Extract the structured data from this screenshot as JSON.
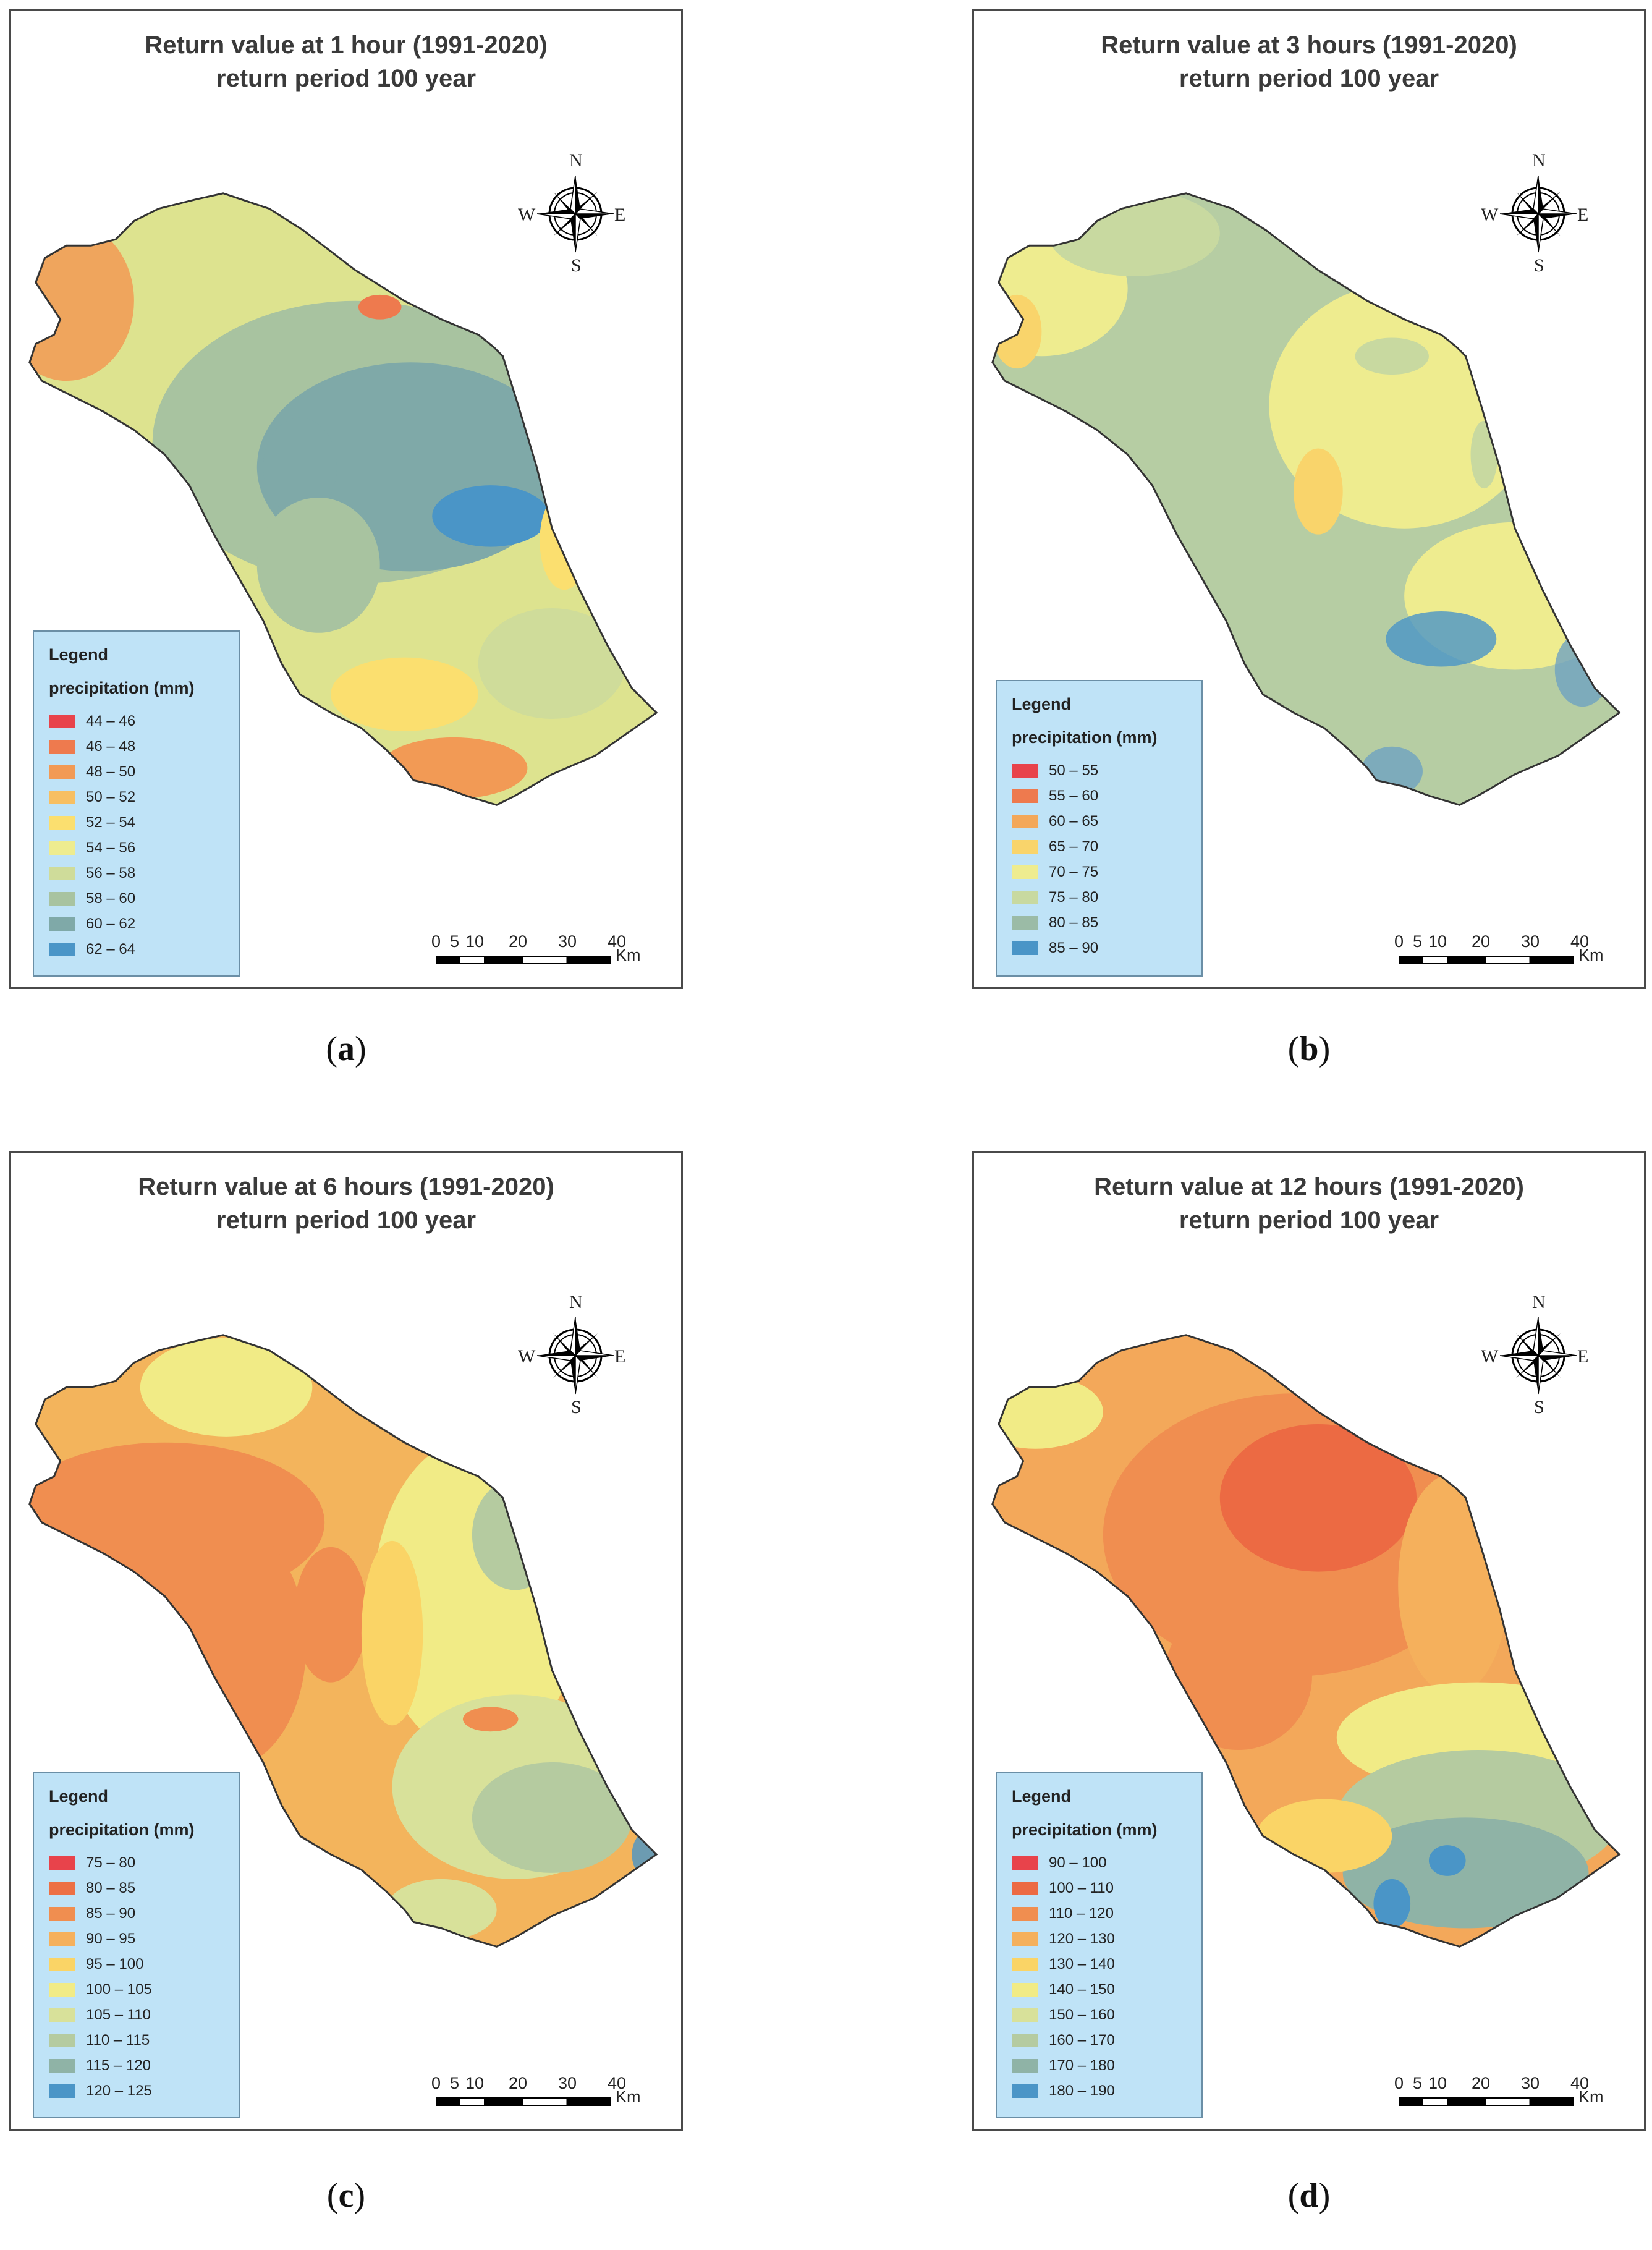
{
  "compass_labels": {
    "n": "N",
    "e": "E",
    "s": "S",
    "w": "W"
  },
  "scale_bar": {
    "ticks": [
      "0",
      "5",
      "10",
      "20",
      "30",
      "40"
    ],
    "unit": "Km"
  },
  "legend_title": "Legend",
  "legend_unit": "precipitation (mm)",
  "panels": [
    {
      "caption": "a",
      "title_line1": "Return value at 1 hour (1991-2020)",
      "title_line2": "return period 100 year",
      "classes": [
        {
          "label": "44 – 46",
          "color": "#e8434b"
        },
        {
          "label": "46 – 48",
          "color": "#ee7a4e"
        },
        {
          "label": "48 – 50",
          "color": "#f29a55"
        },
        {
          "label": "50 – 52",
          "color": "#f7bf62"
        },
        {
          "label": "52 – 54",
          "color": "#fbdf6f"
        },
        {
          "label": "54 – 56",
          "color": "#eeec8f"
        },
        {
          "label": "56 – 58",
          "color": "#cfdc9a"
        },
        {
          "label": "58 – 60",
          "color": "#a8c3a0"
        },
        {
          "label": "60 – 62",
          "color": "#7fa9a8"
        },
        {
          "label": "62 – 64",
          "color": "#4a95c7"
        }
      ],
      "base_color": "#dde38f"
    },
    {
      "caption": "b",
      "title_line1": "Return value at 3 hours (1991-2020)",
      "title_line2": "return period 100 year",
      "classes": [
        {
          "label": "50 – 55",
          "color": "#e8434b"
        },
        {
          "label": "55 – 60",
          "color": "#ee7a4e"
        },
        {
          "label": "60 – 65",
          "color": "#f3a85a"
        },
        {
          "label": "65 – 70",
          "color": "#f9d46b"
        },
        {
          "label": "70 – 75",
          "color": "#eeec8f"
        },
        {
          "label": "75 – 80",
          "color": "#c8d9a0"
        },
        {
          "label": "80 – 85",
          "color": "#9bbba6"
        },
        {
          "label": "85 – 90",
          "color": "#4a95c7"
        }
      ],
      "base_color": "#b6cda3"
    },
    {
      "caption": "c",
      "title_line1": "Return value at 6 hours (1991-2020)",
      "title_line2": "return period 100 year",
      "classes": [
        {
          "label": "75 – 80",
          "color": "#e8434b"
        },
        {
          "label": "80 – 85",
          "color": "#ed7045"
        },
        {
          "label": "85 – 90",
          "color": "#f08e50"
        },
        {
          "label": "90 – 95",
          "color": "#f5b05c"
        },
        {
          "label": "95 – 100",
          "color": "#fad466"
        },
        {
          "label": "100 – 105",
          "color": "#f1eb86"
        },
        {
          "label": "105 – 110",
          "color": "#d8e19a"
        },
        {
          "label": "110 – 115",
          "color": "#b5cba0"
        },
        {
          "label": "115 – 120",
          "color": "#8fb3a6"
        },
        {
          "label": "120 – 125",
          "color": "#4a95c7"
        }
      ],
      "base_color": "#f3b45c"
    },
    {
      "caption": "d",
      "title_line1": "Return value at 12 hours (1991-2020)",
      "title_line2": "return period 100 year",
      "classes": [
        {
          "label": "90 – 100",
          "color": "#e8434b"
        },
        {
          "label": "100 – 110",
          "color": "#ec6a43"
        },
        {
          "label": "110 – 120",
          "color": "#f08e50"
        },
        {
          "label": "120 – 130",
          "color": "#f5b05c"
        },
        {
          "label": "130 – 140",
          "color": "#fad466"
        },
        {
          "label": "140 – 150",
          "color": "#f1eb86"
        },
        {
          "label": "150 – 160",
          "color": "#d8e19a"
        },
        {
          "label": "160 – 170",
          "color": "#b5cba0"
        },
        {
          "label": "170 – 180",
          "color": "#8fb3a6"
        },
        {
          "label": "180 – 190",
          "color": "#4a95c7"
        }
      ],
      "base_color": "#f3a85a"
    }
  ]
}
